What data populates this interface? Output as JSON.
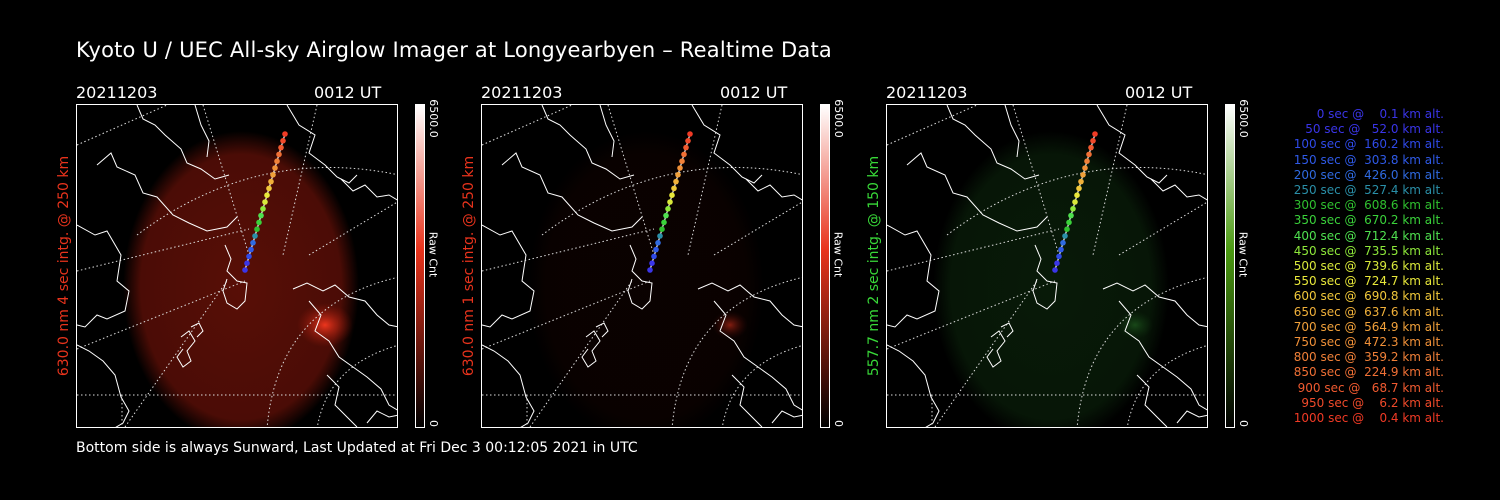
{
  "title": "Kyoto U / UEC All-sky Airglow Imager at Longyearbyen – Realtime Data",
  "footer": "Bottom side is always Sunward, Last Updated at Fri Dec  3 00:12:05 2021 in UTC",
  "panels": [
    {
      "date": "20211203",
      "time": "0012 UT",
      "ylabel": "630.0 nm 4 sec intg. @ 250 km",
      "ylabel_color": "#e8331c",
      "cbar_max": "6500.0",
      "cbar_min": "0",
      "cbar_label": "Raw Cnt",
      "glow": "red",
      "image_color": "#a01a0c",
      "cbar_top": "#e8331c"
    },
    {
      "date": "20211203",
      "time": "0012 UT",
      "ylabel": "630.0 nm 1 sec intg. @ 250 km",
      "ylabel_color": "#e8331c",
      "cbar_max": "6500.0",
      "cbar_min": "0",
      "cbar_label": "Raw Cnt",
      "glow": "faint-red",
      "image_color": "#5a0c05",
      "cbar_top": "#e8331c"
    },
    {
      "date": "20211203",
      "time": "0012 UT",
      "ylabel": "557.7 nm 2 sec intg. @ 150 km",
      "ylabel_color": "#38d838",
      "cbar_max": "6500.0",
      "cbar_min": "0",
      "cbar_label": "Raw Cnt",
      "glow": "green",
      "image_color": "#174a17",
      "cbar_top": "#4b9a12"
    }
  ],
  "legend": [
    {
      "text": "0 sec @    0.1 km alt.",
      "color": "#3a35e8"
    },
    {
      "text": "50 sec @   52.0 km alt.",
      "color": "#3a35e8"
    },
    {
      "text": "100 sec @  160.2 km alt.",
      "color": "#2f4ae8"
    },
    {
      "text": "150 sec @  303.8 km alt.",
      "color": "#2f5ae8"
    },
    {
      "text": "200 sec @  426.0 km alt.",
      "color": "#2f6ae0"
    },
    {
      "text": "250 sec @  527.4 km alt.",
      "color": "#2a8fa8"
    },
    {
      "text": "300 sec @  608.6 km alt.",
      "color": "#2fc02f"
    },
    {
      "text": "350 sec @  670.2 km alt.",
      "color": "#3ad23a"
    },
    {
      "text": "400 sec @  712.4 km alt.",
      "color": "#4fe04f"
    },
    {
      "text": "450 sec @  735.5 km alt.",
      "color": "#8ee83a"
    },
    {
      "text": "500 sec @  739.6 km alt.",
      "color": "#d8e83a"
    },
    {
      "text": "550 sec @  724.7 km alt.",
      "color": "#e8e83a"
    },
    {
      "text": "600 sec @  690.8 km alt.",
      "color": "#f0c83a"
    },
    {
      "text": "650 sec @  637.6 km alt.",
      "color": "#f0b03a"
    },
    {
      "text": "700 sec @  564.9 km alt.",
      "color": "#f0a03a"
    },
    {
      "text": "750 sec @  472.3 km alt.",
      "color": "#f09038"
    },
    {
      "text": "800 sec @  359.2 km alt.",
      "color": "#f08038"
    },
    {
      "text": "850 sec @  224.9 km alt.",
      "color": "#f07035"
    },
    {
      "text": "900 sec @   68.7 km alt.",
      "color": "#f05a30"
    },
    {
      "text": "950 sec @    6.2 km alt.",
      "color": "#f04a2a"
    },
    {
      "text": "1000 sec @    0.4 km alt.",
      "color": "#f03a25"
    }
  ],
  "track_colors": [
    "#3a35e8",
    "#3a35e8",
    "#2f4ae8",
    "#2f5ae8",
    "#2f6ae0",
    "#2a8fa8",
    "#2fc02f",
    "#3ad23a",
    "#4fe04f",
    "#8ee83a",
    "#d8e83a",
    "#e8e83a",
    "#f0c83a",
    "#f0b03a",
    "#f0a03a",
    "#f09038",
    "#f08038",
    "#f07035",
    "#f05a30",
    "#f04a2a",
    "#f03a25"
  ]
}
